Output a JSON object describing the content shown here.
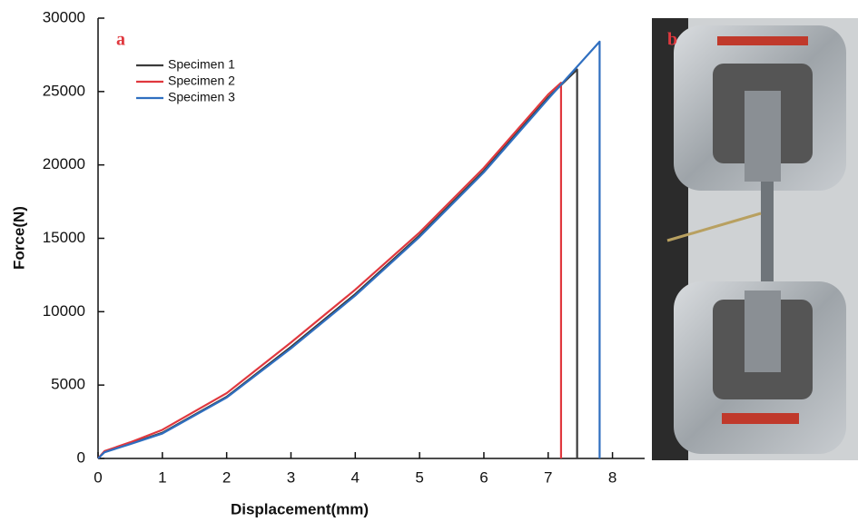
{
  "chart_data": {
    "type": "line",
    "panel_labels": [
      "a",
      "b"
    ],
    "xlabel": "Displacement(mm)",
    "ylabel": "Force(N)",
    "xlim": [
      0,
      8.5
    ],
    "ylim": [
      0,
      30000
    ],
    "xticks": [
      0,
      1,
      2,
      3,
      4,
      5,
      6,
      7,
      8
    ],
    "yticks": [
      0,
      5000,
      10000,
      15000,
      20000,
      25000,
      30000
    ],
    "legend": "upper left",
    "series": [
      {
        "name": "Specimen 1",
        "color": "#3b3b3b",
        "x": [
          0,
          0.1,
          0.5,
          1,
          2,
          3,
          4,
          5,
          6,
          7,
          7.45,
          7.45
        ],
        "values": [
          0,
          450,
          1000,
          1750,
          4200,
          7600,
          11200,
          15200,
          19600,
          24600,
          26500,
          0
        ]
      },
      {
        "name": "Specimen 2",
        "color": "#e0383e",
        "x": [
          0,
          0.1,
          0.5,
          1,
          2,
          3,
          4,
          5,
          6,
          7,
          7.2,
          7.2
        ],
        "values": [
          0,
          500,
          1100,
          1950,
          4450,
          7900,
          11500,
          15400,
          19800,
          24800,
          25600,
          0
        ]
      },
      {
        "name": "Specimen 3",
        "color": "#2f6fc0",
        "x": [
          0,
          0.1,
          0.5,
          1,
          2,
          3,
          4,
          5,
          6,
          7,
          7.8,
          7.8
        ],
        "values": [
          0,
          420,
          980,
          1700,
          4150,
          7500,
          11100,
          15100,
          19500,
          24500,
          28400,
          0
        ]
      }
    ]
  }
}
